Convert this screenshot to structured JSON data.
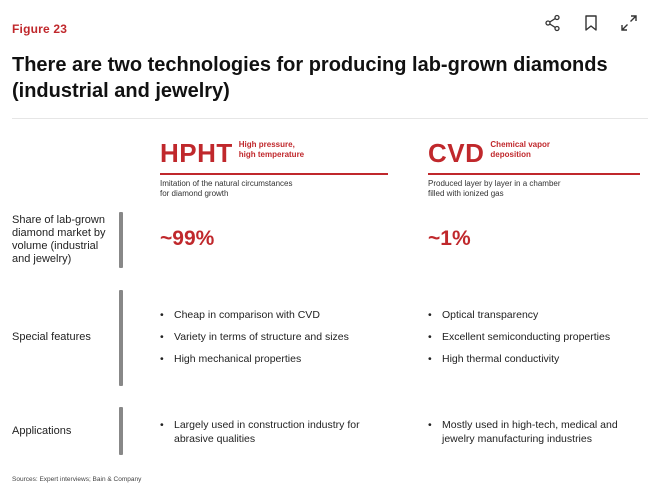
{
  "figure_label": "Figure 23",
  "title": "There are two technologies for producing lab-grown diamonds (industrial and jewelry)",
  "icons": {
    "share": "share-icon",
    "bookmark": "bookmark-icon",
    "expand": "expand-icon"
  },
  "colors": {
    "accent": "#c0282c",
    "text": "#1a1a1a",
    "bar": "#888888"
  },
  "hpht": {
    "name": "HPHT",
    "subtitle_line1": "High pressure,",
    "subtitle_line2": "high temperature",
    "desc_line1": "Imitation of the natural circumstances",
    "desc_line2": "for diamond growth",
    "share": "~99%",
    "features": [
      "Cheap in comparison with CVD",
      "Variety in terms of structure and sizes",
      "High mechanical properties"
    ],
    "applications": [
      "Largely used in construction industry for abrasive qualities"
    ]
  },
  "cvd": {
    "name": "CVD",
    "subtitle_line1": "Chemical vapor",
    "subtitle_line2": "deposition",
    "desc_line1": "Produced layer by layer in a chamber",
    "desc_line2": "filled with ionized gas",
    "share": "~1%",
    "features": [
      "Optical transparency",
      "Excellent semiconducting properties",
      "High thermal conductivity"
    ],
    "applications": [
      "Mostly used in high-tech, medical and jewelry manufacturing industries"
    ]
  },
  "rows": {
    "share": "Share of lab-grown diamond market by volume (industrial and jewelry)",
    "features": "Special features",
    "applications": "Applications"
  },
  "source": "Sources: Expert interviews; Bain & Company"
}
